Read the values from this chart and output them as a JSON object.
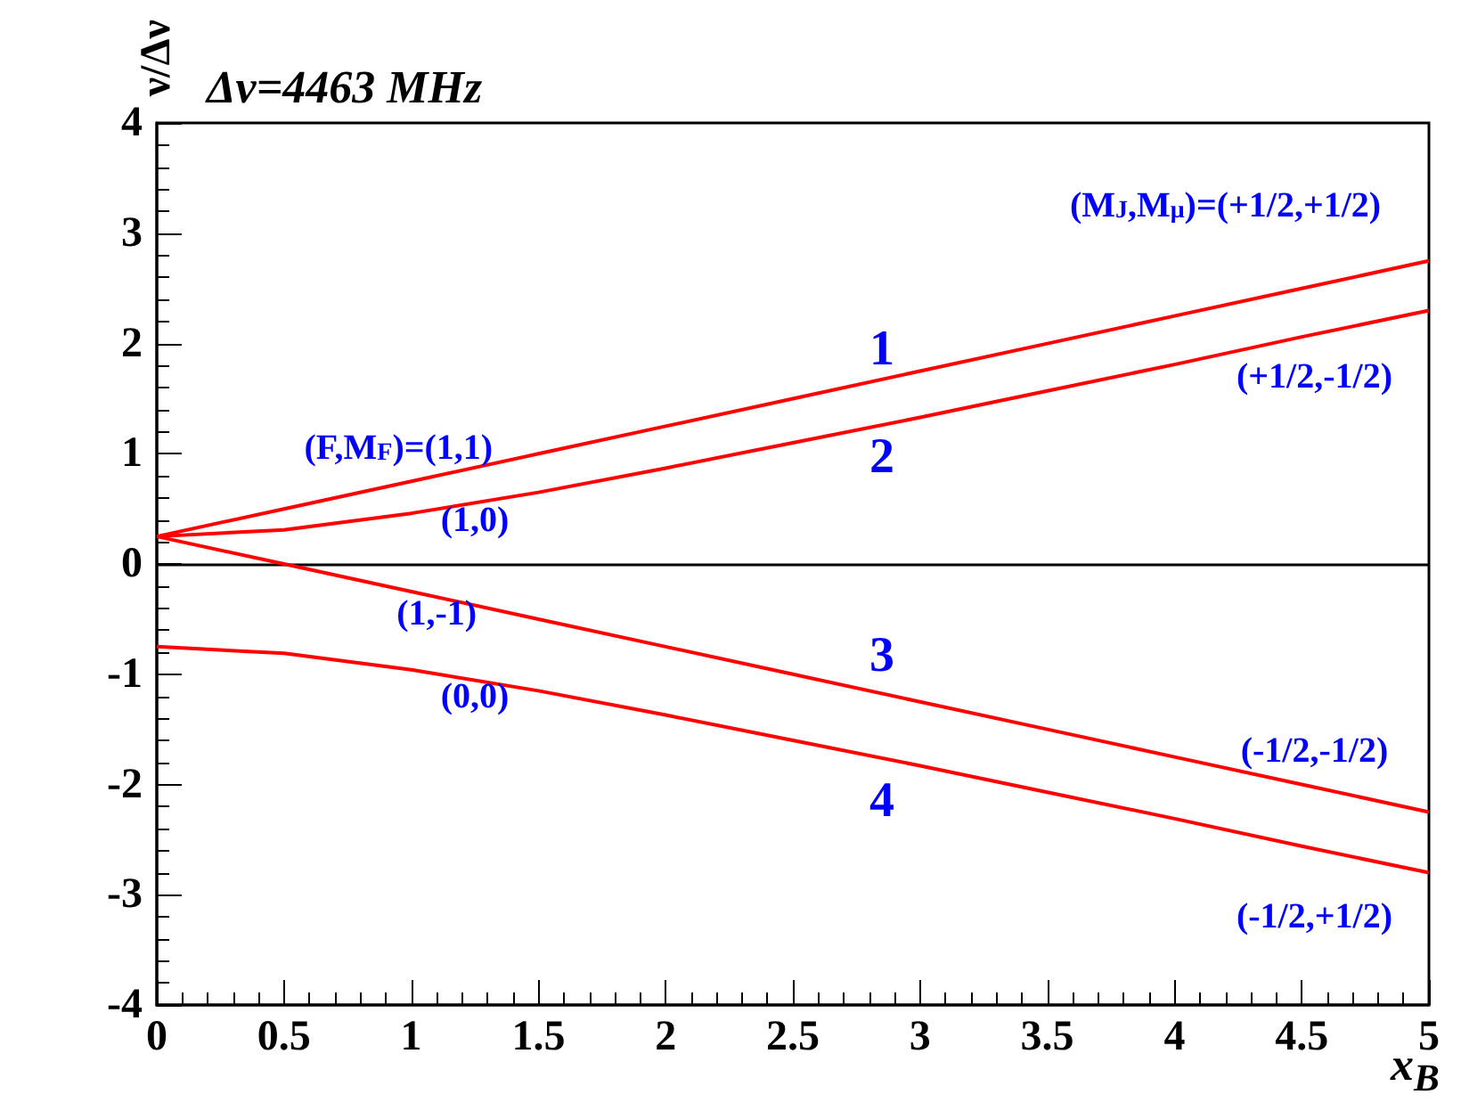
{
  "chart_data": {
    "type": "line",
    "xlabel": "x$_{B}$",
    "ylabel": "ν/Δν",
    "x": [
      0,
      0.5,
      1,
      1.5,
      2,
      2.5,
      3,
      3.5,
      4,
      4.5,
      5
    ],
    "series": [
      {
        "color": "#ff0000",
        "values": [
          0.25,
          0.5,
          0.75,
          1.0,
          1.25,
          1.5,
          1.75,
          2.0,
          2.25,
          2.5,
          2.75
        ]
      },
      {
        "color": "#ff0000",
        "values": [
          0.25,
          0.31,
          0.46,
          0.65,
          0.87,
          1.1,
          1.33,
          1.57,
          1.81,
          2.06,
          2.3
        ]
      },
      {
        "color": "#ff0000",
        "values": [
          0.25,
          0.0,
          -0.25,
          -0.5,
          -0.75,
          -1.0,
          -1.25,
          -1.5,
          -1.75,
          -2.0,
          -2.25
        ]
      },
      {
        "color": "#ff0000",
        "values": [
          -0.75,
          -0.81,
          -0.96,
          -1.15,
          -1.37,
          -1.6,
          -1.83,
          -2.07,
          -2.31,
          -2.56,
          -2.8
        ]
      }
    ],
    "xlim": [
      0,
      5
    ],
    "ylim": [
      -4,
      4
    ],
    "xticks": [
      0,
      0.5,
      1,
      1.5,
      2,
      2.5,
      3,
      3.5,
      4,
      4.5,
      5
    ],
    "yticks": [
      -4,
      -3,
      -2,
      -1,
      0,
      1,
      2,
      3,
      4
    ],
    "grid": false,
    "marker": "none",
    "line_style": "solid",
    "ref_lines": [
      {
        "axis": "y",
        "value": 0,
        "color": "#000000"
      }
    ],
    "annotations": [
      "Δν=4463 MHz",
      "(M$_{J}$,M$_{μ}$)=(+1/2,+1/2)",
      "1",
      "2",
      "3",
      "4",
      "(F,M$_{F}$)=(1,1)",
      "(1,0)",
      "(1,-1)",
      "(0,0)",
      "(+1/2,-1/2)",
      "(-1/2,-1/2)",
      "(-1/2,+1/2)"
    ]
  }
}
